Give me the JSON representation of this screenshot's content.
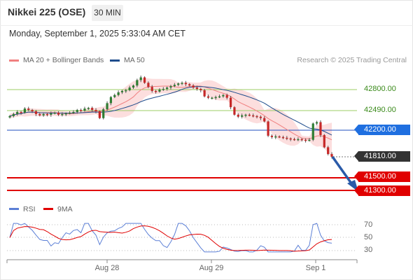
{
  "header": {
    "title": "Nikkei 225 (OSE)",
    "timeframe": "30 MIN",
    "datetime": "Monday, September 1, 2025 5:33:04 AM CET"
  },
  "legend": {
    "bollinger": "MA 20 + Bollinger Bands",
    "ma50": "MA 50",
    "copyright": "Research © 2025 Trading Central"
  },
  "rsi_legend": {
    "rsi": "RSI",
    "ma": "9MA"
  },
  "levels": {
    "r2": "42800.00",
    "r1": "42490.00",
    "pivot": "42200.00",
    "last": "41810.00",
    "s1": "41500.00",
    "s2": "41300.00"
  },
  "rsi_ticks": {
    "t70": "70",
    "t50": "50",
    "t30": "30"
  },
  "xaxis": {
    "d1": "Aug 28",
    "d2": "Aug 29",
    "d3": "Sep 1"
  },
  "colors": {
    "bollinger": "#f08080",
    "ma50": "#1e4d8c",
    "up": "#2e7d32",
    "down": "#c62828",
    "pivot": "#1f6fe0",
    "support": "#e00000",
    "resistance": "#8bc34a",
    "rsi": "#5b7fd6",
    "rsi_ma": "#e00000"
  },
  "chart_data": [
    {
      "type": "candlestick",
      "ylim": [
        41230,
        43050
      ],
      "levels": [
        42800,
        42490,
        42200,
        41810,
        41500,
        41300
      ],
      "note_ma": [
        "MA 20 + Bollinger Bands",
        "MA 50"
      ],
      "close": [
        42410,
        42440,
        42470,
        42460,
        42520,
        42500,
        42480,
        42440,
        42420,
        42440,
        42430,
        42450,
        42460,
        42430,
        42440,
        42450,
        42460,
        42470,
        42500,
        42490,
        42520,
        42530,
        42500,
        42480,
        42380,
        42510,
        42600,
        42690,
        42720,
        42760,
        42780,
        42790,
        42830,
        42860,
        42940,
        42980,
        42900,
        42840,
        42780,
        42770,
        42800,
        42810,
        42830,
        42850,
        42870,
        42890,
        42900,
        42880,
        42860,
        42830,
        42810,
        42790,
        42700,
        42680,
        42680,
        42690,
        42700,
        42720,
        42680,
        42540,
        42430,
        42400,
        42420,
        42430,
        42420,
        42410,
        42400,
        42380,
        42330,
        42120,
        42100,
        42110,
        42100,
        42090,
        42080,
        42070,
        42060,
        42070,
        42060,
        42050,
        42060,
        42300,
        42320,
        42130,
        41950,
        41850,
        41810
      ]
    },
    {
      "type": "line",
      "name": "RSI",
      "ylim": [
        20,
        80
      ],
      "ticks": [
        70,
        50,
        30
      ]
    }
  ]
}
